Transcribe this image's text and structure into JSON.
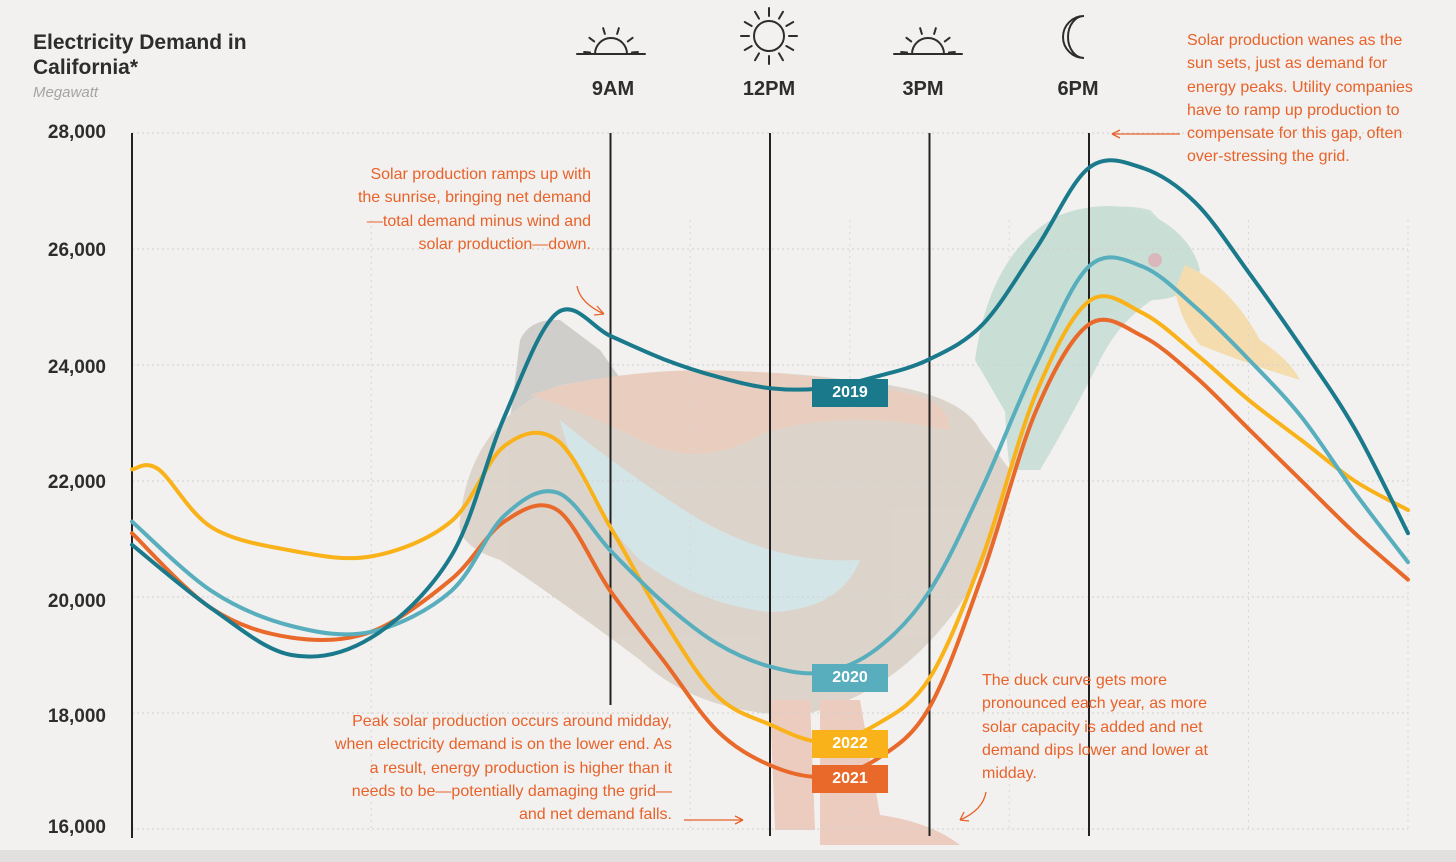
{
  "header": {
    "title": "Electricity Demand in California*",
    "subtitle": "Megawatt"
  },
  "times": [
    {
      "label": "9AM",
      "icon": "sunrise-icon"
    },
    {
      "label": "12PM",
      "icon": "sun-icon"
    },
    {
      "label": "3PM",
      "icon": "sunset-icon"
    },
    {
      "label": "6PM",
      "icon": "moon-icon"
    }
  ],
  "annotations": {
    "sunrise_note": "Solar production ramps up with the sunrise, bringing net demand—total demand minus wind and solar production—down.",
    "sunset_note": "Solar production wanes as the sun sets, just as demand for energy peaks. Utility companies have to ramp up production to compensate for this gap, often over-stressing the grid.",
    "midday_note": "Peak solar production occurs around midday, when electricity demand is on the lower end. As a result, energy production is higher than it needs to be—potentially damaging the grid— and net demand falls.",
    "duck_note": "The duck curve gets more pronounced each year, as more solar capacity is added and net demand dips lower and lower at midday."
  },
  "colors": {
    "annotation": "#e8622a",
    "s2019": "#1a7a8c",
    "s2020": "#58aebd",
    "s2021": "#e8692a",
    "s2022": "#f9b21a"
  },
  "chart_data": {
    "type": "line",
    "ylabel": "Megawatt",
    "ylim": [
      16000,
      28000
    ],
    "yticks": [
      16000,
      18000,
      20000,
      22000,
      24000,
      26000,
      28000
    ],
    "ytick_labels": [
      "16,000",
      "18,000",
      "20,000",
      "22,000",
      "24,000",
      "26,000",
      "28,000"
    ],
    "x_unit": "hours after midnight",
    "xlim": [
      0,
      24
    ],
    "x_markers": [
      {
        "x": 9,
        "label": "9AM"
      },
      {
        "x": 12,
        "label": "12PM"
      },
      {
        "x": 15,
        "label": "3PM"
      },
      {
        "x": 18,
        "label": "6PM"
      }
    ],
    "series": [
      {
        "name": "2019",
        "color": "#1a7a8c",
        "x": [
          0,
          1.5,
          3,
          4.5,
          6,
          7,
          8,
          9,
          10,
          11,
          12,
          13,
          14,
          15,
          16,
          17,
          18,
          19,
          20,
          21,
          22,
          23,
          24
        ],
        "y": [
          20900,
          19800,
          19000,
          19300,
          20700,
          23100,
          24900,
          24500,
          24100,
          23800,
          23600,
          23600,
          23800,
          24100,
          24700,
          26000,
          27400,
          27400,
          26800,
          25600,
          24300,
          22900,
          21100
        ]
      },
      {
        "name": "2020",
        "color": "#58aebd",
        "x": [
          0,
          1.5,
          3,
          4.5,
          6,
          7,
          8,
          9,
          10,
          11,
          12,
          13,
          14,
          15,
          16,
          17,
          18,
          19,
          20,
          21,
          22,
          23,
          24
        ],
        "y": [
          21300,
          20100,
          19500,
          19400,
          20100,
          21400,
          21800,
          20800,
          19900,
          19200,
          18800,
          18700,
          19100,
          20100,
          21900,
          24000,
          25700,
          25700,
          25000,
          24100,
          23100,
          21800,
          20600
        ]
      },
      {
        "name": "2021",
        "color": "#e8692a",
        "x": [
          0,
          1.5,
          3,
          4.5,
          6,
          7,
          8,
          9,
          10,
          11,
          12,
          13,
          14,
          15,
          16,
          17,
          18,
          19,
          20,
          21,
          22,
          23,
          24
        ],
        "y": [
          21100,
          19800,
          19300,
          19400,
          20300,
          21300,
          21500,
          20100,
          18900,
          17700,
          17100,
          16900,
          17200,
          18100,
          20400,
          23200,
          24700,
          24500,
          23800,
          22900,
          22000,
          21100,
          20300
        ]
      },
      {
        "name": "2022",
        "color": "#f9b21a",
        "x": [
          0,
          0.5,
          1.5,
          3,
          4.5,
          6,
          7,
          8,
          9,
          10,
          11,
          12,
          13,
          14,
          15,
          16,
          17,
          18,
          19,
          20,
          21,
          22,
          23,
          24
        ],
        "y": [
          22200,
          22200,
          21200,
          20800,
          20700,
          21300,
          22600,
          22700,
          21200,
          19600,
          18300,
          17800,
          17500,
          17800,
          18600,
          20700,
          23500,
          25100,
          24900,
          24200,
          23400,
          22700,
          22000,
          21500
        ]
      }
    ]
  }
}
